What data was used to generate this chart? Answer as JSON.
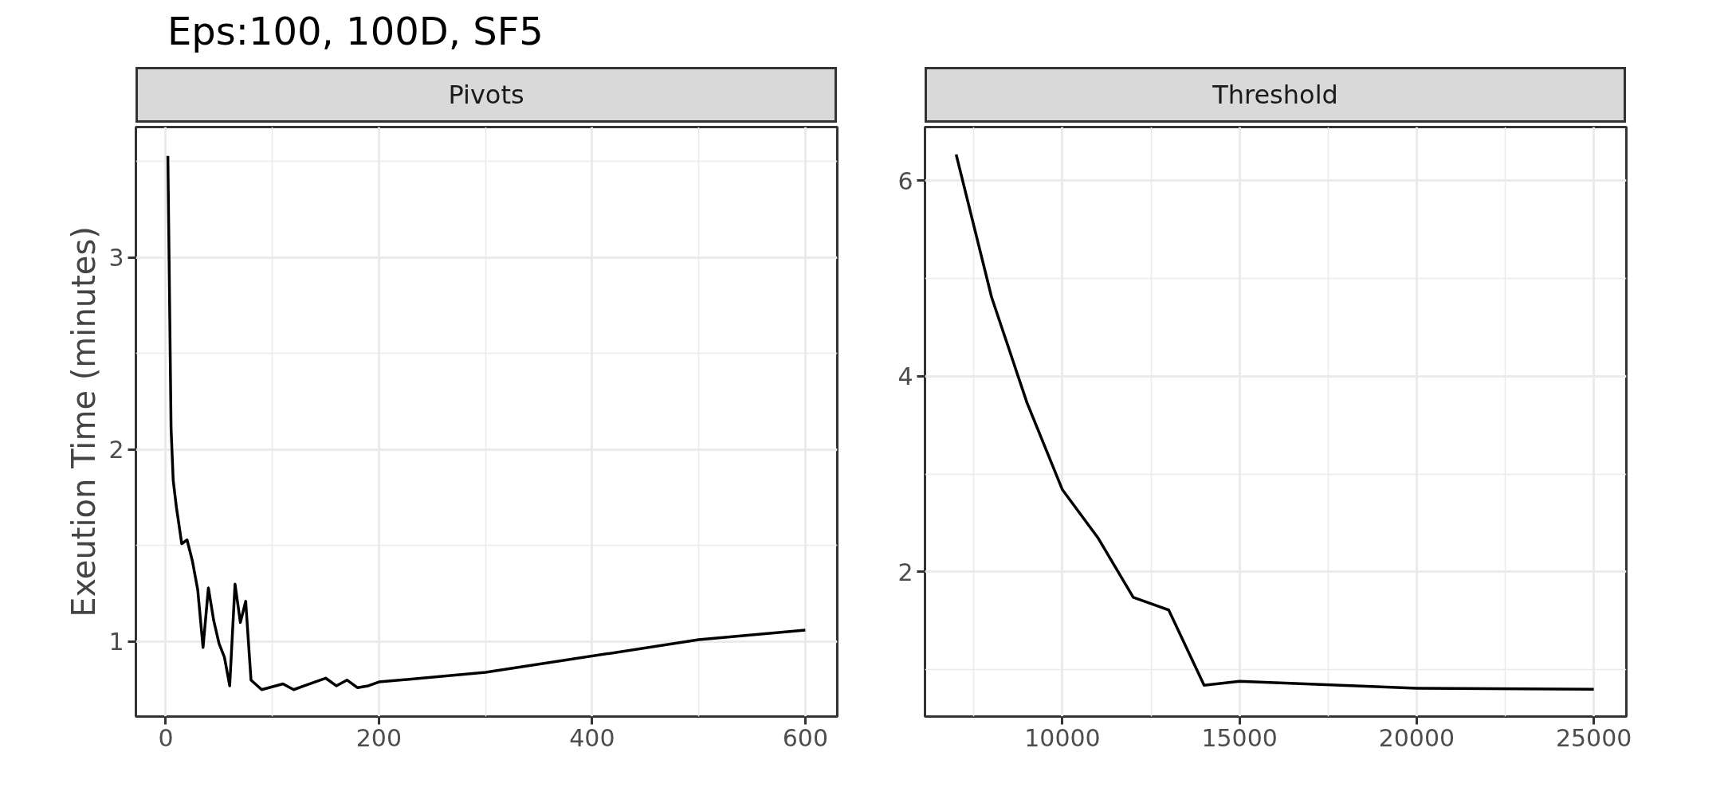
{
  "chart_data": [
    {
      "type": "line",
      "title": "Eps:100, 100D, SF5",
      "subtitle": "Pivots",
      "ylabel": "Exeution Time (minutes)",
      "x": [
        2,
        5,
        7,
        10,
        15,
        20,
        25,
        30,
        35,
        40,
        45,
        50,
        55,
        60,
        65,
        70,
        75,
        80,
        90,
        110,
        120,
        130,
        140,
        150,
        160,
        170,
        180,
        190,
        200,
        300,
        500,
        600
      ],
      "series": [
        {
          "color": "#000000",
          "values": [
            3.53,
            2.11,
            1.84,
            1.7,
            1.51,
            1.53,
            1.42,
            1.27,
            0.97,
            1.28,
            1.11,
            0.99,
            0.92,
            0.77,
            1.3,
            1.1,
            1.21,
            0.8,
            0.75,
            0.78,
            0.75,
            0.77,
            0.79,
            0.81,
            0.77,
            0.8,
            0.76,
            0.77,
            0.79,
            0.84,
            1.01,
            1.06
          ]
        }
      ],
      "xlim": [
        -28,
        630
      ],
      "ylim": [
        0.61,
        3.68
      ],
      "xticks": [
        0,
        200,
        400,
        600
      ],
      "yticks": [
        1,
        2,
        3
      ],
      "grid": true,
      "line_style": "solid",
      "marker": "none"
    },
    {
      "type": "line",
      "subtitle": "Threshold",
      "x": [
        7000,
        8000,
        9000,
        10000,
        11000,
        12000,
        13000,
        14000,
        15000,
        20000,
        25000
      ],
      "series": [
        {
          "color": "#000000",
          "values": [
            6.27,
            4.81,
            3.73,
            2.84,
            2.35,
            1.74,
            1.61,
            0.84,
            0.88,
            0.81,
            0.8
          ]
        }
      ],
      "xlim": [
        6120,
        25920
      ],
      "ylim": [
        0.52,
        6.55
      ],
      "xticks": [
        10000,
        15000,
        20000,
        25000
      ],
      "yticks": [
        2,
        4,
        6
      ],
      "grid": true,
      "line_style": "solid",
      "marker": "none"
    }
  ]
}
